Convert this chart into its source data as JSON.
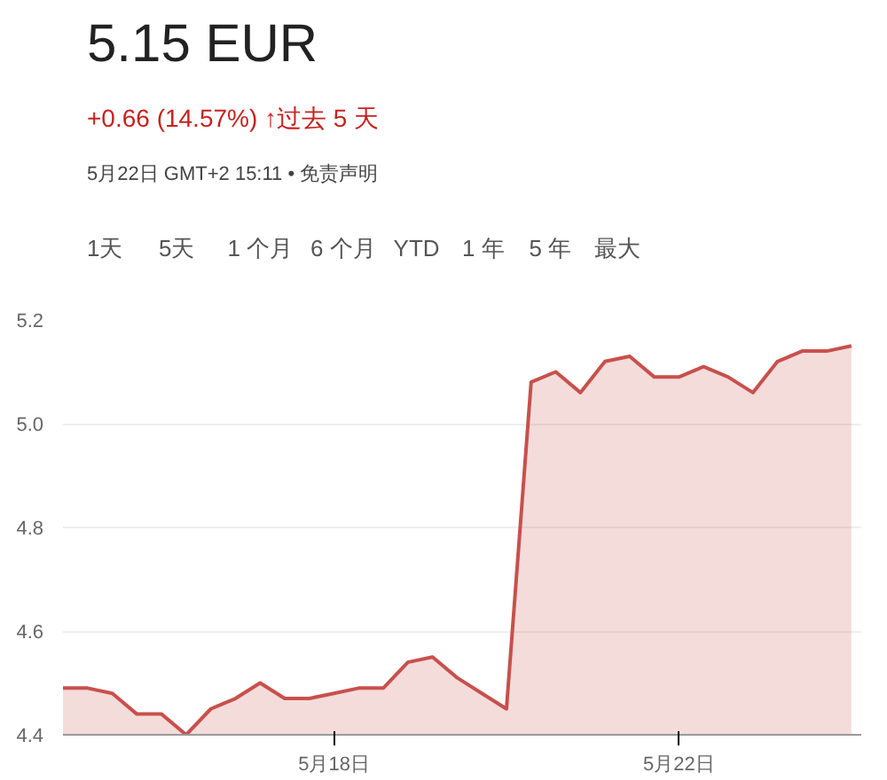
{
  "chart_data": {
    "type": "area",
    "title": "5.15 EUR",
    "subtitle": "+0.66 (14.57%) ↑过去 5 天",
    "annotations": [
      "5月22日 GMT+2 15:11 • 免责声明",
      "1天",
      "5天",
      "1 个月",
      "6 个月",
      "YTD",
      "1 年",
      "5 年",
      "最大"
    ],
    "categories": [
      null,
      null,
      null,
      null,
      null,
      null,
      null,
      null,
      null,
      null,
      null,
      "5月18日",
      null,
      null,
      null,
      null,
      null,
      null,
      null,
      null,
      null,
      null,
      null,
      null,
      null,
      "5月22日",
      null,
      null,
      null,
      null,
      null,
      null,
      null
    ],
    "series": [
      {
        "color": "#c8504c",
        "values": [
          4.49,
          4.49,
          4.48,
          4.44,
          4.44,
          4.4,
          4.45,
          4.47,
          4.5,
          4.47,
          4.47,
          4.48,
          4.49,
          4.49,
          4.54,
          4.55,
          4.51,
          4.48,
          4.45,
          5.08,
          5.1,
          5.06,
          5.12,
          5.13,
          5.09,
          5.09,
          5.11,
          5.09,
          5.06,
          5.12,
          5.14,
          5.14,
          5.15
        ]
      }
    ],
    "ylim": [
      4.4,
      5.2
    ],
    "yticks": [
      {
        "value": 4.4,
        "label": "4.4"
      },
      {
        "value": 4.6,
        "label": "4.6"
      },
      {
        "value": 4.8,
        "label": "4.8"
      },
      {
        "value": 5.0,
        "label": "5.0"
      },
      {
        "value": 5.2,
        "label": "5.2"
      }
    ],
    "grid": "y",
    "line_style": "solid"
  }
}
